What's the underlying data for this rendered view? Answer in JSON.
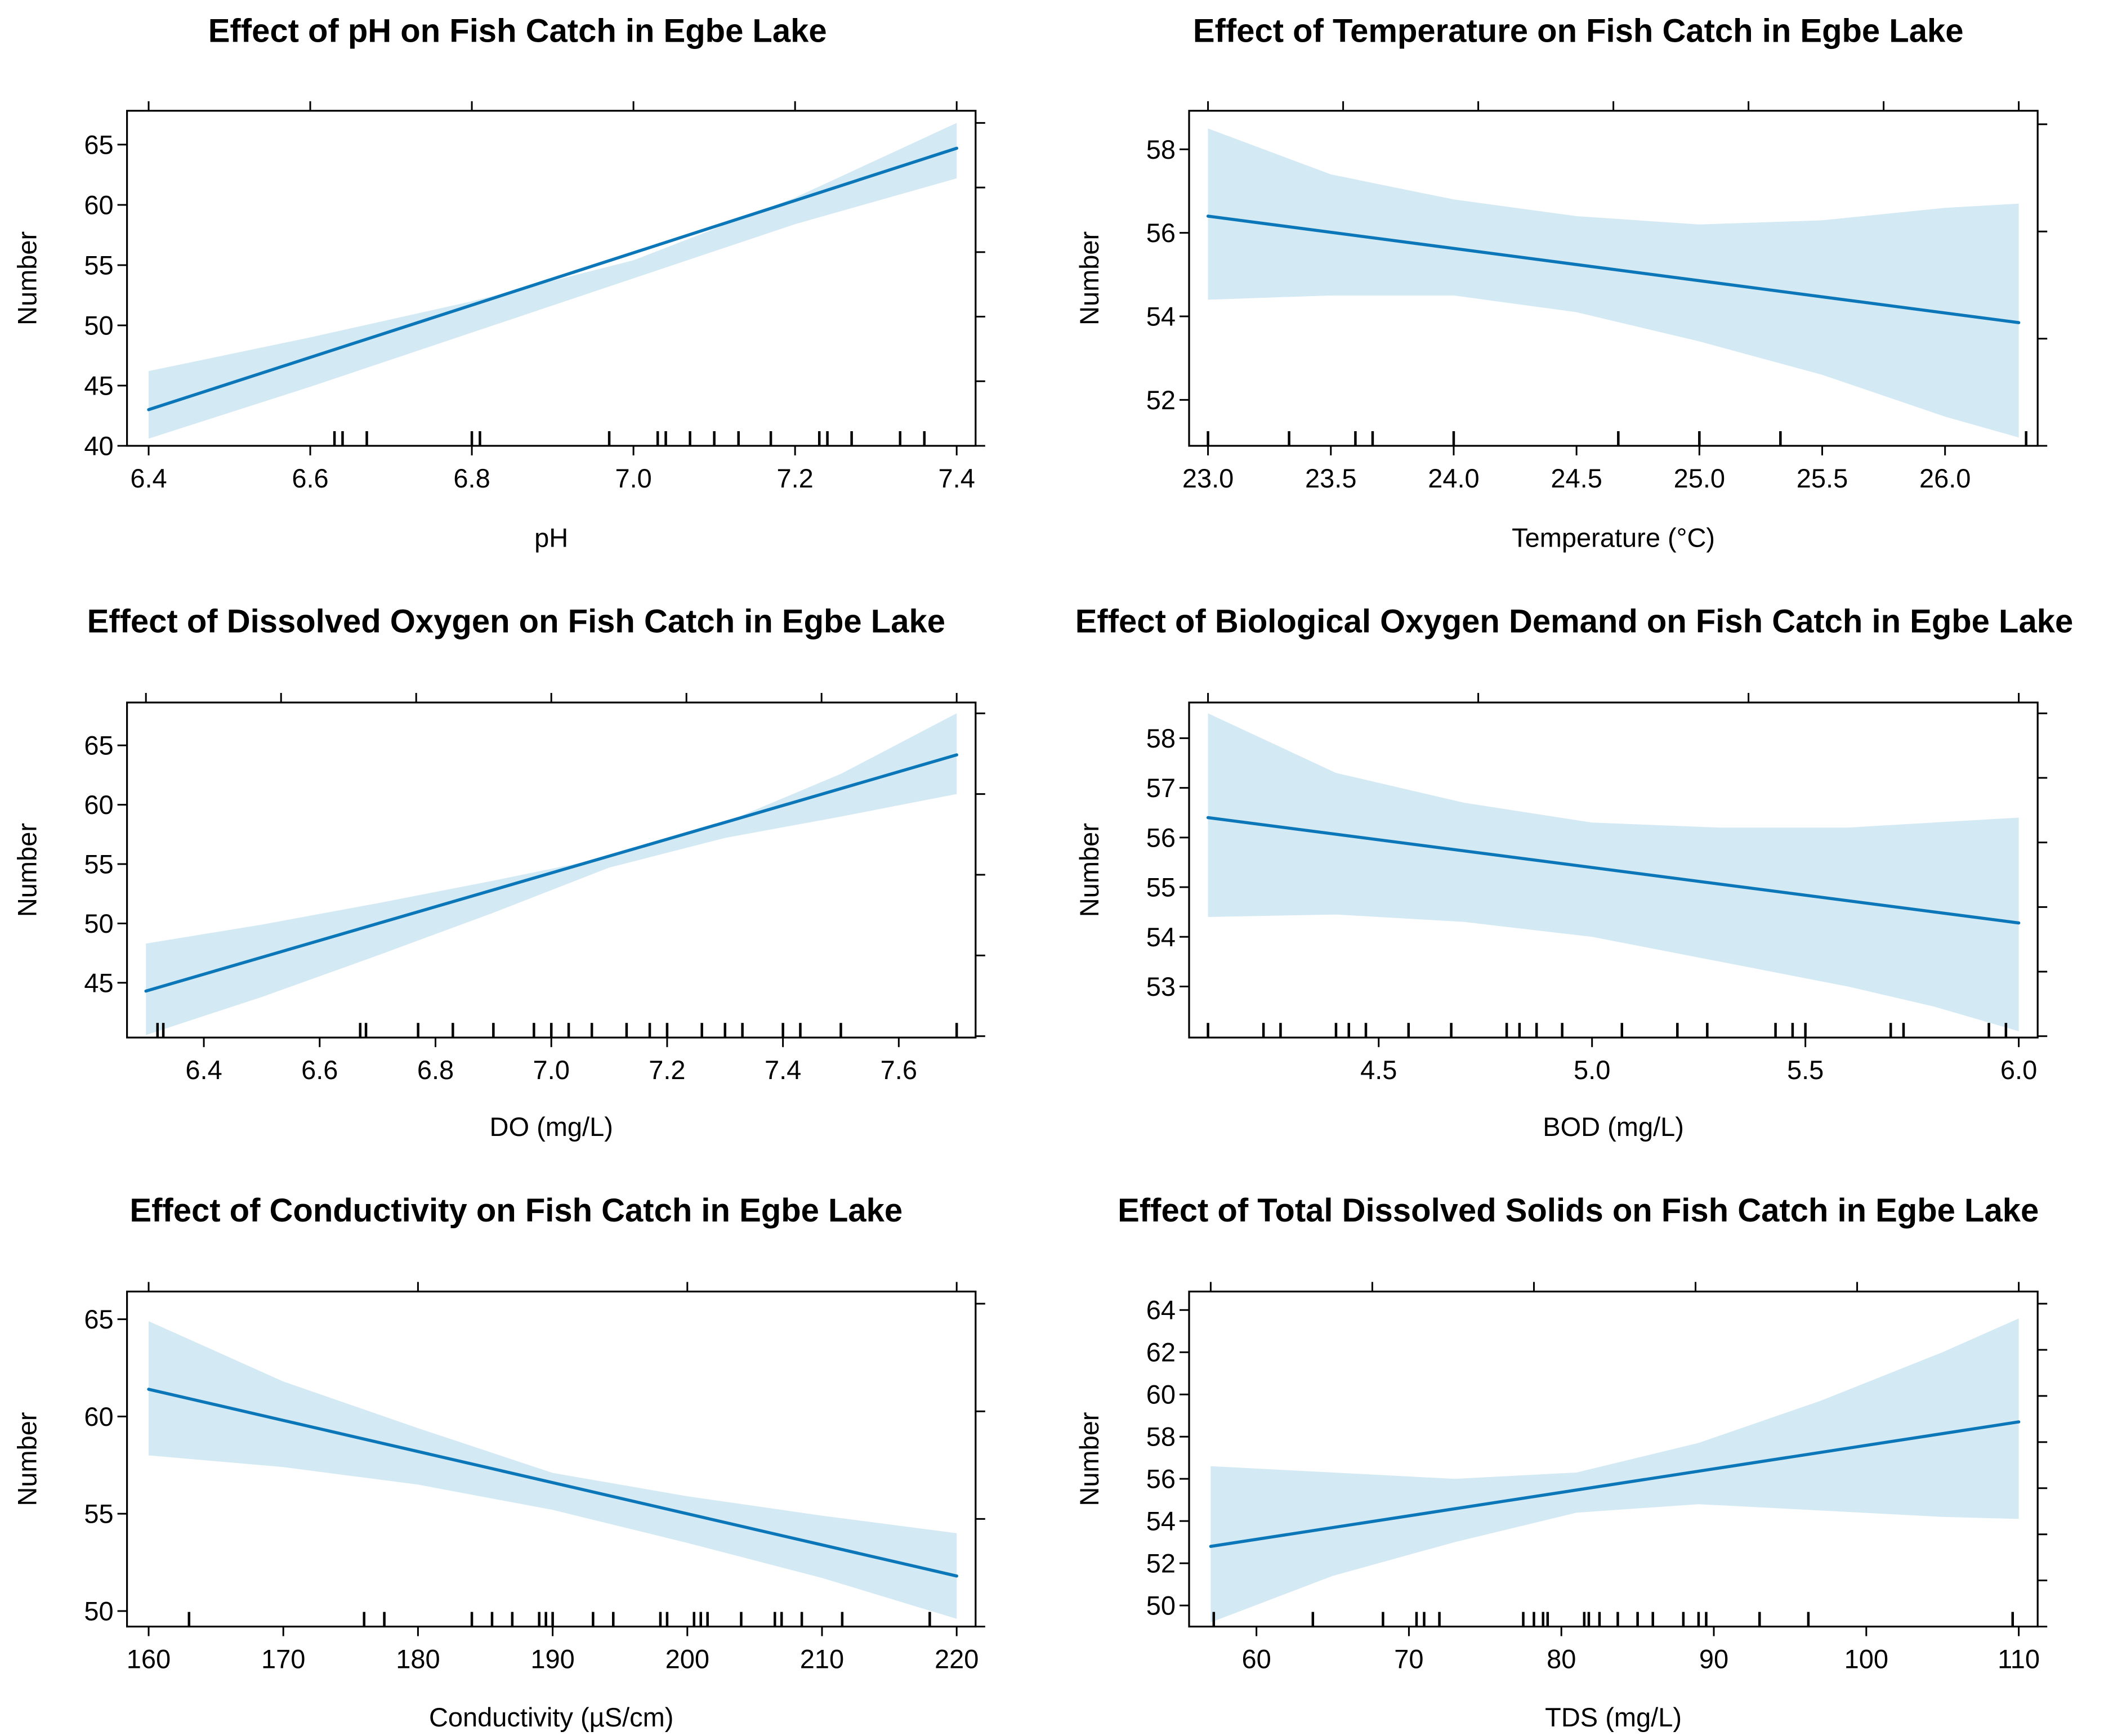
{
  "chart_data": [
    {
      "type": "line",
      "title": "Effect of pH on Fish Catch in Egbe Lake",
      "xlabel": "pH",
      "ylabel": "Number",
      "xlim": [
        6.4,
        7.4
      ],
      "ylim": [
        40,
        66.8
      ],
      "x_ticks": [
        "6.4",
        "6.6",
        "6.8",
        "7.0",
        "7.2",
        "7.4"
      ],
      "y_ticks": [
        "40",
        "45",
        "50",
        "55",
        "60",
        "65"
      ],
      "fit": {
        "x": [
          6.4,
          7.4
        ],
        "y": [
          43.0,
          64.7
        ]
      },
      "band": {
        "x": [
          6.4,
          6.6,
          6.8,
          7.0,
          7.2,
          7.4
        ],
        "upper": [
          46.2,
          49.0,
          52.0,
          55.4,
          60.6,
          66.8
        ],
        "lower": [
          40.6,
          44.9,
          49.4,
          53.9,
          58.4,
          62.2
        ]
      },
      "rug": [
        6.63,
        6.64,
        6.67,
        6.8,
        6.81,
        6.97,
        7.03,
        7.04,
        7.07,
        7.1,
        7.13,
        7.17,
        7.23,
        7.24,
        7.27,
        7.33,
        7.36
      ]
    },
    {
      "type": "line",
      "title": "Effect of Temperature on Fish Catch in Egbe Lake",
      "xlabel": "Temperature (°C)",
      "ylabel": "Number",
      "xlim": [
        23.0,
        26.3
      ],
      "ylim": [
        50.9,
        58.6
      ],
      "x_ticks": [
        "23.0",
        "23.5",
        "24.0",
        "24.5",
        "25.0",
        "25.5",
        "26.0"
      ],
      "y_ticks": [
        "52",
        "54",
        "56",
        "58"
      ],
      "fit": {
        "x": [
          23.0,
          26.3
        ],
        "y": [
          56.4,
          53.85
        ]
      },
      "band": {
        "x": [
          23.0,
          23.5,
          24.0,
          24.5,
          25.0,
          25.5,
          26.0,
          26.3
        ],
        "upper": [
          58.5,
          57.4,
          56.8,
          56.4,
          56.2,
          56.3,
          56.6,
          56.7
        ],
        "lower": [
          54.4,
          54.5,
          54.5,
          54.1,
          53.4,
          52.6,
          51.6,
          51.1
        ]
      },
      "rug": [
        23.0,
        23.33,
        23.6,
        23.67,
        24.0,
        24.67,
        25.0,
        25.33,
        26.33
      ]
    },
    {
      "type": "line",
      "title": "Effect of Dissolved Oxygen on Fish Catch in Egbe Lake",
      "xlabel": "DO (mg/L)",
      "ylabel": "Number",
      "xlim": [
        6.3,
        7.7
      ],
      "ylim": [
        40.5,
        67.7
      ],
      "x_ticks": [
        "6.4",
        "6.6",
        "6.8",
        "7.0",
        "7.2",
        "7.4",
        "7.6"
      ],
      "y_ticks": [
        "45",
        "50",
        "55",
        "60",
        "65"
      ],
      "fit": {
        "x": [
          6.3,
          7.7
        ],
        "y": [
          44.3,
          64.2
        ]
      },
      "band": {
        "x": [
          6.3,
          6.5,
          6.7,
          6.9,
          7.1,
          7.3,
          7.5,
          7.7
        ],
        "upper": [
          48.3,
          49.9,
          51.7,
          53.6,
          55.6,
          58.5,
          62.6,
          67.7
        ],
        "lower": [
          40.6,
          43.8,
          47.3,
          50.9,
          54.7,
          57.2,
          59.0,
          60.9
        ]
      },
      "rug": [
        6.32,
        6.33,
        6.67,
        6.68,
        6.77,
        6.83,
        6.9,
        6.97,
        7.0,
        7.03,
        7.07,
        7.13,
        7.17,
        7.2,
        7.26,
        7.3,
        7.33,
        7.4,
        7.43,
        7.5,
        7.7
      ]
    },
    {
      "type": "line",
      "title": "Effect of Biological Oxygen Demand on Fish Catch in Egbe Lake",
      "xlabel": "BOD (mg/L)",
      "ylabel": "Number",
      "xlim": [
        4.1,
        6.0
      ],
      "ylim": [
        52.0,
        58.5
      ],
      "x_ticks": [
        "4.5",
        "5.0",
        "5.5",
        "6.0"
      ],
      "y_ticks": [
        "53",
        "54",
        "55",
        "56",
        "57",
        "58"
      ],
      "fit": {
        "x": [
          4.1,
          6.0
        ],
        "y": [
          56.4,
          54.28
        ]
      },
      "band": {
        "x": [
          4.1,
          4.4,
          4.7,
          5.0,
          5.3,
          5.6,
          5.8,
          6.0
        ],
        "upper": [
          58.5,
          57.3,
          56.7,
          56.3,
          56.2,
          56.2,
          56.3,
          56.4
        ],
        "lower": [
          54.4,
          54.45,
          54.3,
          54.0,
          53.5,
          53.0,
          52.6,
          52.1
        ]
      },
      "rug": [
        4.1,
        4.23,
        4.27,
        4.4,
        4.43,
        4.47,
        4.57,
        4.67,
        4.8,
        4.83,
        4.87,
        4.93,
        5.07,
        5.2,
        5.27,
        5.43,
        5.47,
        5.5,
        5.7,
        5.73,
        5.93,
        5.97
      ]
    },
    {
      "type": "line",
      "title": "Effect of Conductivity on Fish Catch in Egbe Lake",
      "xlabel": "Conductivity (µS/cm)",
      "ylabel": "Number",
      "xlim": [
        160,
        220
      ],
      "ylim": [
        49.2,
        65.8
      ],
      "x_ticks": [
        "160",
        "170",
        "180",
        "190",
        "200",
        "210",
        "220"
      ],
      "y_ticks": [
        "50",
        "55",
        "60",
        "65"
      ],
      "fit": {
        "x": [
          160,
          220
        ],
        "y": [
          61.4,
          51.8
        ]
      },
      "band": {
        "x": [
          160,
          170,
          180,
          190,
          200,
          210,
          220
        ],
        "upper": [
          64.9,
          61.8,
          59.4,
          57.1,
          55.9,
          54.9,
          54.0
        ],
        "lower": [
          58.0,
          57.4,
          56.5,
          55.2,
          53.5,
          51.7,
          49.6
        ]
      },
      "rug": [
        163,
        176,
        177.5,
        184,
        185.5,
        187,
        189,
        189.5,
        190,
        193,
        194.5,
        198,
        198.5,
        200.5,
        201,
        201.5,
        204,
        206.5,
        207,
        208.5,
        211.5,
        218
      ]
    },
    {
      "type": "line",
      "title": "Effect of Total Dissolved Solids on Fish Catch in Egbe Lake",
      "xlabel": "TDS (mg/L)",
      "ylabel": "Number",
      "xlim": [
        57,
        110
      ],
      "ylim": [
        49.0,
        64.3
      ],
      "x_ticks": [
        "60",
        "70",
        "80",
        "90",
        "100",
        "110"
      ],
      "y_ticks": [
        "50",
        "52",
        "54",
        "56",
        "58",
        "60",
        "62",
        "64"
      ],
      "fit": {
        "x": [
          57,
          110
        ],
        "y": [
          52.8,
          58.7
        ]
      },
      "band": {
        "x": [
          57,
          65,
          73,
          81,
          89,
          97,
          105,
          110
        ],
        "upper": [
          56.6,
          56.3,
          56.0,
          56.3,
          57.7,
          59.7,
          62.0,
          63.6
        ],
        "lower": [
          49.2,
          51.4,
          53.0,
          54.4,
          54.8,
          54.5,
          54.2,
          54.1
        ]
      },
      "rug": [
        57.2,
        63.7,
        68.3,
        70.5,
        71,
        72,
        77.5,
        78.2,
        78.8,
        79.1,
        81.5,
        81.8,
        82.5,
        83.7,
        85,
        86,
        88,
        89,
        89.5,
        93,
        96.2,
        109.6
      ]
    }
  ],
  "colors": {
    "band": "#d3e9f4",
    "line": "#0b77b8",
    "axis": "#000000"
  }
}
